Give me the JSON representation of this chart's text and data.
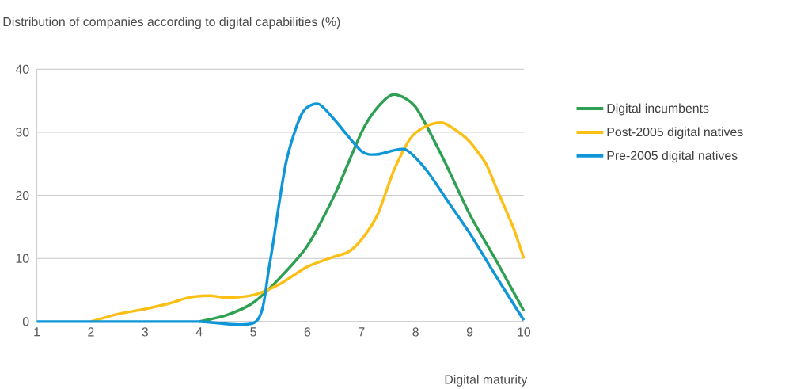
{
  "chart_data": {
    "type": "line",
    "title": "Distribution of companies according to digital capabilities (%)",
    "xlabel": "Digital maturity",
    "xlim": [
      1,
      10
    ],
    "ylim": [
      0,
      40
    ],
    "xticks": [
      1,
      2,
      3,
      4,
      5,
      6,
      7,
      8,
      9,
      10
    ],
    "yticks": [
      0,
      10,
      20,
      30,
      40
    ],
    "grid": "y",
    "legend": "right",
    "line_style": "solid",
    "marker": "none",
    "series": [
      {
        "name": "Digital incumbents",
        "color": "#2ea052",
        "x": [
          4,
          4.5,
          5,
          5.5,
          6,
          6.5,
          7,
          7.3,
          7.6,
          8,
          8.5,
          9,
          9.5,
          10
        ],
        "values": [
          0,
          1,
          3,
          7,
          12,
          20,
          30,
          34,
          36,
          34,
          26,
          17,
          9.5,
          1.7
        ]
      },
      {
        "name": "Post-2005 digital natives",
        "color": "#fbbf16",
        "x": [
          2,
          2.5,
          3,
          3.5,
          3.8,
          4.2,
          4.5,
          5,
          5.5,
          6,
          6.5,
          6.75,
          7,
          7.3,
          7.6,
          7.9,
          8.2,
          8.5,
          8.8,
          9,
          9.3,
          9.5,
          9.8,
          10
        ],
        "values": [
          0,
          1.2,
          2,
          3,
          3.8,
          4.1,
          3.8,
          4.2,
          6,
          8.7,
          10.3,
          11,
          13,
          17,
          24,
          29,
          31,
          31.5,
          30,
          28.5,
          25,
          21,
          15,
          10
        ]
      },
      {
        "name": "Pre-2005 digital natives",
        "color": "#0f96d8",
        "x": [
          1,
          2,
          3,
          4,
          5.05,
          5.3,
          5.6,
          5.9,
          6.2,
          6.5,
          7,
          7.3,
          7.8,
          8.2,
          8.6,
          9,
          9.5,
          10
        ],
        "values": [
          0,
          0,
          0,
          0,
          0,
          9,
          25,
          33,
          34.5,
          32,
          27,
          26.5,
          27.3,
          24,
          19,
          14,
          7,
          0.2
        ]
      }
    ]
  }
}
